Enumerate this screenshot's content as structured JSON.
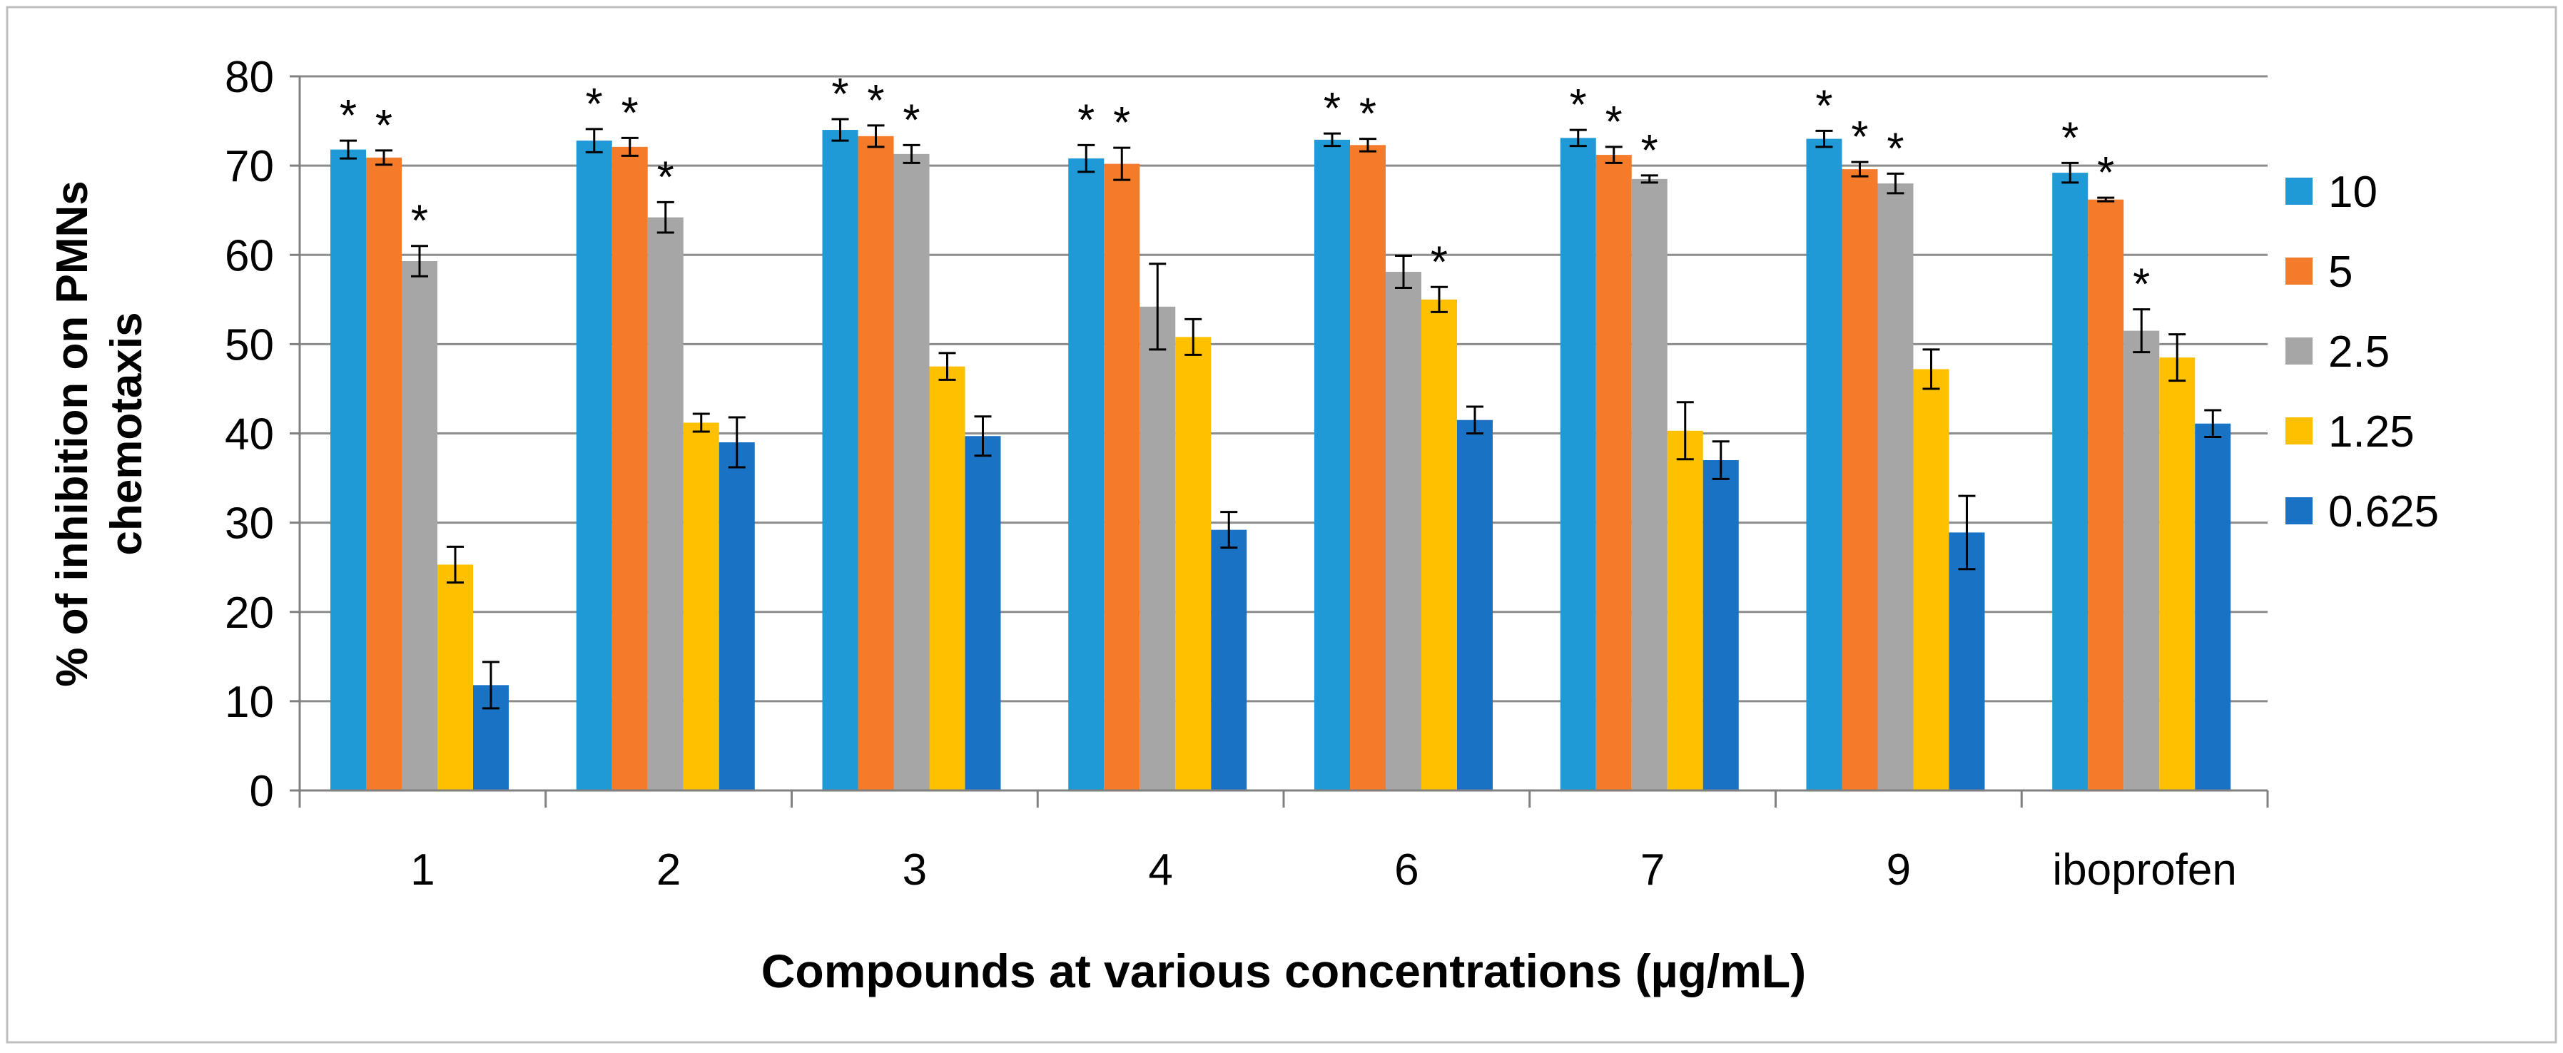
{
  "chart_data": {
    "type": "bar",
    "title": "",
    "xlabel": "Compounds at various concentrations (µg/mL)",
    "ylabel": "% of inhibition on PMNs chemotaxis",
    "ylabel_lines": [
      "% of inhibition on PMNs",
      "chemotaxis"
    ],
    "ylim": [
      0,
      80
    ],
    "yticks": [
      0,
      10,
      20,
      30,
      40,
      50,
      60,
      70,
      80
    ],
    "grid": true,
    "legend_position": "right",
    "significance_marker": "*",
    "categories": [
      "1",
      "2",
      "3",
      "4",
      "6",
      "7",
      "9",
      "iboprofen"
    ],
    "series": [
      {
        "name": "10",
        "color": "#1f9ad6",
        "values": [
          71.8,
          72.8,
          74.0,
          70.8,
          72.9,
          73.1,
          73.0,
          69.2
        ],
        "errors": [
          1.0,
          1.3,
          1.2,
          1.5,
          0.7,
          0.9,
          0.9,
          1.1
        ],
        "significant": [
          true,
          true,
          true,
          true,
          true,
          true,
          true,
          true
        ]
      },
      {
        "name": "5",
        "color": "#f47b2a",
        "values": [
          70.9,
          72.1,
          73.3,
          70.2,
          72.3,
          71.2,
          69.6,
          66.2
        ],
        "errors": [
          0.8,
          1.0,
          1.2,
          1.8,
          0.7,
          0.9,
          0.8,
          0.2
        ],
        "significant": [
          true,
          true,
          true,
          true,
          true,
          true,
          true,
          true
        ]
      },
      {
        "name": "2.5",
        "color": "#a6a6a6",
        "values": [
          59.3,
          64.2,
          71.3,
          54.2,
          58.1,
          68.5,
          68.0,
          51.5
        ],
        "errors": [
          1.7,
          1.7,
          1.0,
          4.8,
          1.8,
          0.4,
          1.1,
          2.4
        ],
        "significant": [
          true,
          true,
          true,
          false,
          false,
          true,
          true,
          true
        ]
      },
      {
        "name": "1.25",
        "color": "#ffc000",
        "values": [
          25.3,
          41.2,
          47.5,
          50.8,
          55.0,
          40.3,
          47.2,
          48.5
        ],
        "errors": [
          2.0,
          1.0,
          1.5,
          2.0,
          1.4,
          3.2,
          2.2,
          2.6
        ],
        "significant": [
          false,
          false,
          false,
          false,
          true,
          false,
          false,
          false
        ]
      },
      {
        "name": "0.625",
        "color": "#1a72c4",
        "values": [
          11.8,
          39.0,
          39.7,
          29.2,
          41.5,
          37.0,
          28.9,
          41.1
        ],
        "errors": [
          2.6,
          2.8,
          2.2,
          2.0,
          1.5,
          2.1,
          4.1,
          1.5
        ],
        "significant": [
          false,
          false,
          false,
          false,
          false,
          false,
          false,
          false
        ]
      }
    ]
  }
}
